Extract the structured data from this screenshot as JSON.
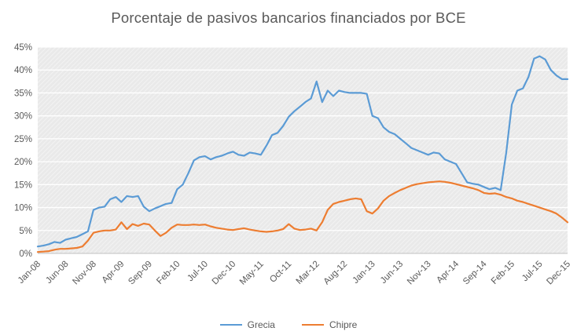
{
  "chart_data": {
    "type": "line",
    "title": "Porcentaje de pasivos bancarios financiados por BCE",
    "xlabel": "",
    "ylabel": "",
    "x_frequency": "monthly",
    "x_range": [
      "Jan-08",
      "Dec-15"
    ],
    "x_tick_every": 5,
    "x_tick_labels": [
      "Jan-08",
      "Jun-08",
      "Nov-08",
      "Apr-09",
      "Sep-09",
      "Feb-10",
      "Jul-10",
      "Dec-10",
      "May-11",
      "Oct-11",
      "Mar-12",
      "Aug-12",
      "Jan-13",
      "Jun-13",
      "Nov-13",
      "Apr-14",
      "Sep-14",
      "Feb-15",
      "Jul-15",
      "Dec-15"
    ],
    "ylim": [
      0,
      45
    ],
    "y_tick_step": 5,
    "y_tick_labels": [
      "0%",
      "5%",
      "10%",
      "15%",
      "20%",
      "25%",
      "30%",
      "35%",
      "40%",
      "45%"
    ],
    "grid": true,
    "legend_position": "bottom",
    "plot_bg_color": "#e9e9e9",
    "gridline_color": "#ffffff",
    "axis_text_color": "#595959",
    "axis_line_color": "#bfbfbf",
    "series": [
      {
        "name": "Grecia",
        "color": "#5B9BD5",
        "values": [
          1.5,
          1.7,
          2.0,
          2.5,
          2.3,
          3.0,
          3.3,
          3.6,
          4.2,
          4.8,
          9.5,
          10.0,
          10.2,
          11.8,
          12.3,
          11.2,
          12.5,
          12.3,
          12.5,
          10.2,
          9.2,
          9.8,
          10.3,
          10.8,
          11.0,
          14.0,
          15.0,
          17.5,
          20.3,
          21.0,
          21.2,
          20.5,
          21.0,
          21.3,
          21.8,
          22.2,
          21.5,
          21.3,
          22.0,
          21.8,
          21.5,
          23.5,
          25.8,
          26.3,
          27.8,
          29.8,
          31.0,
          32.0,
          33.0,
          33.8,
          37.5,
          33.0,
          35.5,
          34.3,
          35.5,
          35.2,
          35.0,
          35.0,
          35.0,
          34.8,
          30.0,
          29.5,
          27.5,
          26.5,
          26.0,
          25.0,
          24.0,
          23.0,
          22.5,
          22.0,
          21.5,
          22.0,
          21.8,
          20.5,
          20.0,
          19.5,
          17.5,
          15.5,
          15.2,
          15.0,
          14.5,
          14.0,
          14.3,
          13.8,
          22.0,
          32.5,
          35.5,
          36.0,
          38.5,
          42.5,
          43.0,
          42.3,
          40.0,
          38.8,
          38.0,
          38.0
        ]
      },
      {
        "name": "Chipre",
        "color": "#ED7D31",
        "values": [
          0.3,
          0.4,
          0.5,
          0.8,
          1.0,
          1.0,
          1.1,
          1.2,
          1.5,
          2.8,
          4.5,
          4.8,
          5.0,
          5.0,
          5.2,
          6.8,
          5.3,
          6.4,
          6.0,
          6.5,
          6.3,
          5.0,
          3.8,
          4.5,
          5.6,
          6.3,
          6.2,
          6.2,
          6.3,
          6.2,
          6.3,
          5.9,
          5.6,
          5.4,
          5.2,
          5.1,
          5.3,
          5.5,
          5.2,
          5.0,
          4.8,
          4.7,
          4.8,
          5.0,
          5.3,
          6.4,
          5.4,
          5.1,
          5.2,
          5.4,
          5.0,
          6.8,
          9.5,
          10.8,
          11.2,
          11.5,
          11.8,
          12.0,
          11.8,
          9.2,
          8.7,
          9.8,
          11.5,
          12.5,
          13.2,
          13.8,
          14.3,
          14.8,
          15.1,
          15.3,
          15.5,
          15.6,
          15.7,
          15.6,
          15.4,
          15.1,
          14.8,
          14.5,
          14.2,
          13.8,
          13.2,
          13.0,
          13.1,
          12.8,
          12.3,
          12.0,
          11.5,
          11.2,
          10.8,
          10.4,
          10.0,
          9.6,
          9.2,
          8.7,
          7.8,
          6.8
        ]
      }
    ]
  }
}
